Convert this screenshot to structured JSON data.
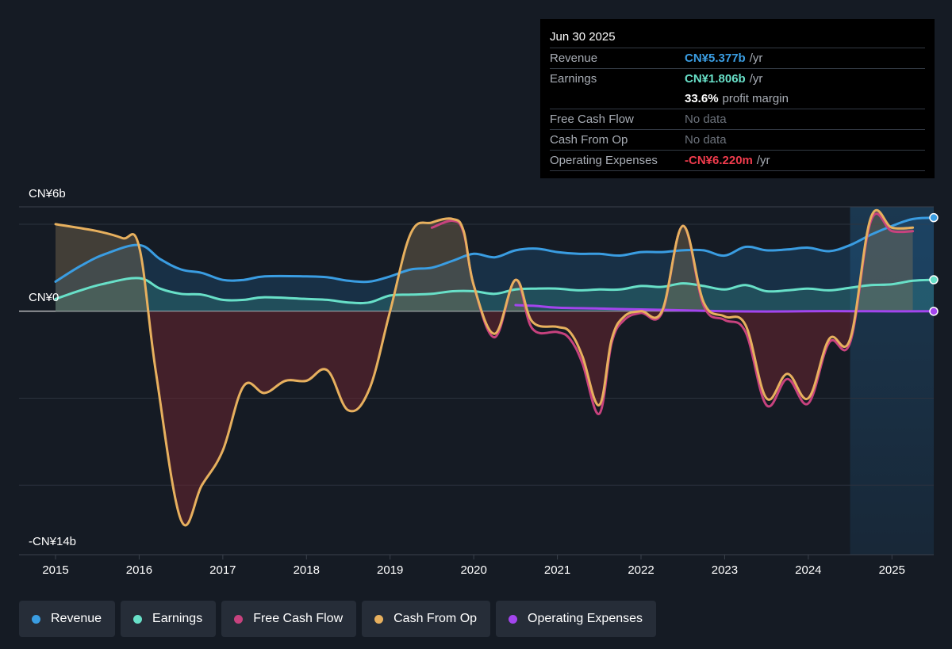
{
  "tooltip": {
    "date": "Jun 30 2025",
    "rows": [
      {
        "label": "Revenue",
        "value": "CN¥5.377b",
        "unit": "/yr",
        "color": "#3a9de2"
      },
      {
        "label": "Earnings",
        "value": "CN¥1.806b",
        "unit": "/yr",
        "color": "#68e0c8"
      },
      {
        "label": "",
        "value": "33.6%",
        "unit": "profit margin",
        "color": "#ffffff"
      },
      {
        "label": "Free Cash Flow",
        "value": "No data",
        "unit": "",
        "color": "#6c727b"
      },
      {
        "label": "Cash From Op",
        "value": "No data",
        "unit": "",
        "color": "#6c727b"
      },
      {
        "label": "Operating Expenses",
        "value": "-CN¥6.220m",
        "unit": "/yr",
        "color": "#ee3b4c"
      }
    ]
  },
  "legend": [
    {
      "label": "Revenue",
      "color": "#3a9de2"
    },
    {
      "label": "Earnings",
      "color": "#68e0c8"
    },
    {
      "label": "Free Cash Flow",
      "color": "#c7427e"
    },
    {
      "label": "Cash From Op",
      "color": "#e7b05e"
    },
    {
      "label": "Operating Expenses",
      "color": "#a345ee"
    }
  ],
  "chart_data": {
    "type": "line",
    "y_tick_labels": [
      "CN¥6b",
      "CN¥0",
      "-CN¥14b"
    ],
    "ylim": [
      -14,
      6
    ],
    "xlim": [
      2015,
      2025.5
    ],
    "x_ticks": [
      "2015",
      "2016",
      "2017",
      "2018",
      "2019",
      "2020",
      "2021",
      "2022",
      "2023",
      "2024",
      "2025"
    ],
    "gridlines": [
      5,
      0,
      -5,
      -10
    ],
    "forecast_region_start": 2024.5,
    "series": [
      {
        "name": "Revenue",
        "color": "#3a9de2",
        "x": [
          2015,
          2015.3,
          2015.6,
          2016,
          2016.25,
          2016.5,
          2016.75,
          2017,
          2017.25,
          2017.5,
          2018,
          2018.25,
          2018.5,
          2018.75,
          2019,
          2019.25,
          2019.5,
          2019.75,
          2020,
          2020.25,
          2020.5,
          2020.75,
          2021,
          2021.25,
          2021.5,
          2021.75,
          2022,
          2022.25,
          2022.5,
          2022.75,
          2023,
          2023.25,
          2023.5,
          2023.75,
          2024,
          2024.25,
          2024.5,
          2024.75,
          2025,
          2025.25,
          2025.5
        ],
        "y": [
          1.7,
          2.6,
          3.3,
          3.8,
          3.0,
          2.4,
          2.2,
          1.8,
          1.8,
          2.0,
          2.0,
          1.95,
          1.75,
          1.7,
          2.0,
          2.4,
          2.5,
          2.9,
          3.3,
          3.1,
          3.5,
          3.6,
          3.4,
          3.3,
          3.3,
          3.2,
          3.4,
          3.4,
          3.5,
          3.5,
          3.2,
          3.7,
          3.5,
          3.55,
          3.65,
          3.45,
          3.8,
          4.4,
          4.9,
          5.3,
          5.377
        ]
      },
      {
        "name": "Earnings",
        "color": "#68e0c8",
        "x": [
          2015,
          2015.3,
          2015.6,
          2016,
          2016.25,
          2016.5,
          2016.75,
          2017,
          2017.25,
          2017.5,
          2018,
          2018.25,
          2018.5,
          2018.75,
          2019,
          2019.25,
          2019.5,
          2019.75,
          2020,
          2020.25,
          2020.5,
          2020.75,
          2021,
          2021.25,
          2021.5,
          2021.75,
          2022,
          2022.25,
          2022.5,
          2022.75,
          2023,
          2023.25,
          2023.5,
          2023.75,
          2024,
          2024.25,
          2024.5,
          2024.75,
          2025,
          2025.25,
          2025.5
        ],
        "y": [
          0.7,
          1.2,
          1.6,
          1.9,
          1.3,
          1.0,
          0.95,
          0.65,
          0.65,
          0.8,
          0.7,
          0.65,
          0.5,
          0.5,
          0.9,
          0.95,
          1.0,
          1.15,
          1.15,
          1.0,
          1.25,
          1.3,
          1.3,
          1.2,
          1.25,
          1.25,
          1.45,
          1.4,
          1.6,
          1.45,
          1.25,
          1.5,
          1.15,
          1.2,
          1.3,
          1.2,
          1.35,
          1.5,
          1.55,
          1.75,
          1.806
        ]
      },
      {
        "name": "Free Cash Flow",
        "color": "#c7427e",
        "x": [
          2019.5,
          2019.75,
          2019.88,
          2020,
          2020.25,
          2020.5,
          2020.7,
          2021,
          2021.15,
          2021.3,
          2021.5,
          2021.65,
          2021.8,
          2022,
          2022.25,
          2022.5,
          2022.75,
          2023,
          2023.25,
          2023.5,
          2023.75,
          2024,
          2024.25,
          2024.5,
          2024.75,
          2025,
          2025.25
        ],
        "y": [
          4.8,
          5.2,
          4.5,
          1.5,
          -1.5,
          1.8,
          -1.0,
          -1.2,
          -1.6,
          -3.0,
          -5.9,
          -1.8,
          -0.5,
          -0.1,
          -0.1,
          4.9,
          0.3,
          -0.5,
          -1.2,
          -5.4,
          -3.9,
          -5.3,
          -1.8,
          -1.8,
          5.2,
          4.6,
          4.6
        ]
      },
      {
        "name": "Cash From Op",
        "color": "#e7b05e",
        "x": [
          2015,
          2015.5,
          2015.8,
          2016,
          2016.2,
          2016.5,
          2016.75,
          2017,
          2017.25,
          2017.5,
          2017.75,
          2018,
          2018.25,
          2018.5,
          2018.75,
          2019,
          2019.25,
          2019.5,
          2019.75,
          2019.88,
          2020,
          2020.25,
          2020.5,
          2020.7,
          2021,
          2021.15,
          2021.3,
          2021.5,
          2021.65,
          2021.8,
          2022,
          2022.25,
          2022.5,
          2022.75,
          2023,
          2023.25,
          2023.5,
          2023.75,
          2024,
          2024.25,
          2024.5,
          2024.75,
          2025,
          2025.25
        ],
        "y": [
          5.0,
          4.6,
          4.2,
          3.7,
          -3.5,
          -12.0,
          -10.0,
          -8.0,
          -4.3,
          -4.7,
          -4.0,
          -4.0,
          -3.4,
          -5.7,
          -4.5,
          0.0,
          4.5,
          5.1,
          5.3,
          4.6,
          1.5,
          -1.3,
          1.8,
          -0.6,
          -0.9,
          -1.2,
          -2.6,
          -5.4,
          -1.6,
          -0.3,
          0.0,
          0.0,
          4.9,
          0.5,
          -0.3,
          -0.8,
          -5.0,
          -3.6,
          -5.0,
          -1.6,
          -1.6,
          5.4,
          4.8,
          4.8
        ]
      },
      {
        "name": "Operating Expenses",
        "color": "#a345ee",
        "x": [
          2020.5,
          2020.75,
          2021,
          2021.5,
          2022,
          2022.5,
          2023,
          2023.5,
          2024,
          2024.5,
          2025,
          2025.5
        ],
        "y": [
          0.35,
          0.3,
          0.2,
          0.15,
          0.1,
          0.05,
          0.0,
          -0.02,
          0.0,
          0.0,
          -0.01,
          -0.006
        ]
      }
    ]
  }
}
